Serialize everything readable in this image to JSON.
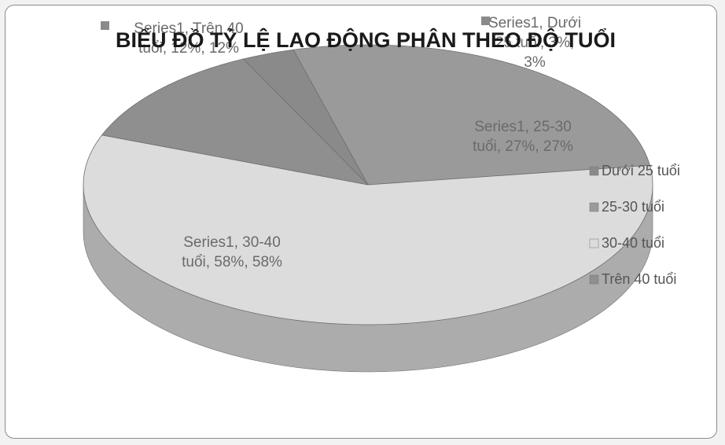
{
  "chart_data": {
    "type": "pie",
    "title": "BIỂU ĐỒ TỶ LỆ LAO ĐỘNG PHÂN THEO ĐỘ TUỔI",
    "series": [
      {
        "name": "Series1",
        "categories": [
          "Dưới 25 tuổi",
          "25-30 tuổi",
          "30-40 tuổi",
          "Trên 40 tuổi"
        ],
        "values": [
          3,
          27,
          58,
          12
        ]
      }
    ],
    "data_labels": [
      [
        "Series1, Dưới",
        "25 tuổi, 3%,",
        "3%"
      ],
      [
        "Series1, 25-30",
        "tuổi, 27%, 27%"
      ],
      [
        "Series1, 30-40",
        "tuổi, 58%, 58%"
      ],
      [
        "Series1, Trên 40",
        "tuổi, 12%, 12%"
      ]
    ],
    "legend": {
      "position": "right",
      "entries": [
        "Dưới 25 tuổi",
        "25-30 tuổi",
        "30-40 tuổi",
        "Trên 40 tuổi"
      ]
    },
    "colors": {
      "Dưới 25 tuổi": "#8a8a8a",
      "25-30 tuổi": "#9a9a9a",
      "30-40 tuổi": "#dcdcdc",
      "Trên 40 tuổi": "#8f8f8f"
    },
    "style": "3d"
  }
}
